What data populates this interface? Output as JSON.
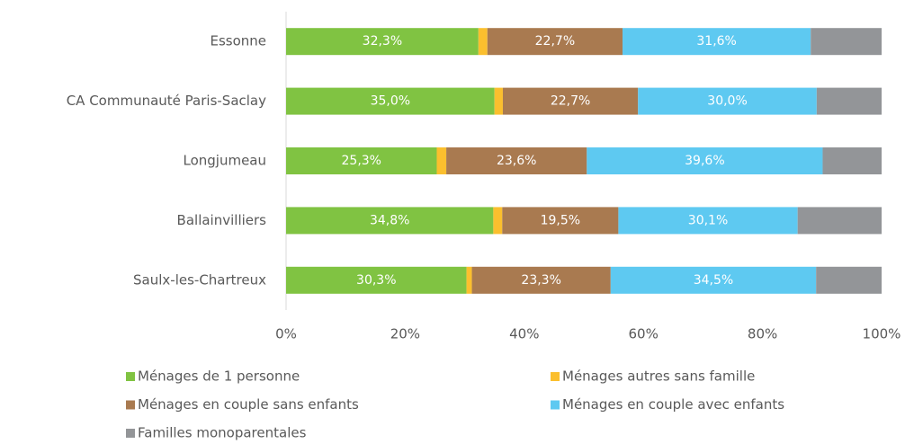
{
  "chart_data": {
    "type": "stacked-bar-horizontal",
    "categories": [
      "Essonne",
      "CA Communauté Paris-Saclay",
      "Longjumeau",
      "Ballainvilliers",
      "Saulx-les-Chartreux"
    ],
    "series": [
      {
        "name": "Ménages de 1 personne",
        "color": "#80c342",
        "values": [
          32.3,
          35.0,
          25.3,
          34.8,
          30.3
        ],
        "value_labels": [
          "32,3%",
          "35,0%",
          "25,3%",
          "34,8%",
          "30,3%"
        ]
      },
      {
        "name": "Ménages autres sans famille",
        "color": "#fbbf2e",
        "values": [
          1.5,
          1.4,
          1.6,
          1.5,
          0.9
        ]
      },
      {
        "name": "Ménages en couple sans enfants",
        "color": "#a97a50",
        "values": [
          22.7,
          22.7,
          23.6,
          19.5,
          23.3
        ],
        "value_labels": [
          "22,7%",
          "22,7%",
          "23,6%",
          "19,5%",
          "23,3%"
        ]
      },
      {
        "name": "Ménages en couple avec enfants",
        "color": "#5ec9f1",
        "values": [
          31.6,
          30.0,
          39.6,
          30.1,
          34.5
        ],
        "value_labels": [
          "31,6%",
          "30,0%",
          "39,6%",
          "30,1%",
          "34,5%"
        ]
      },
      {
        "name": "Familles monoparentales",
        "color": "#939598",
        "values": [
          11.9,
          10.9,
          9.9,
          14.1,
          11.0
        ]
      }
    ],
    "xlim": [
      0,
      100
    ],
    "xticks": [
      {
        "value": 0,
        "label": "0%"
      },
      {
        "value": 20,
        "label": "20%"
      },
      {
        "value": 40,
        "label": "40%"
      },
      {
        "value": 60,
        "label": "60%"
      },
      {
        "value": 80,
        "label": "80%"
      },
      {
        "value": 100,
        "label": "100%"
      }
    ]
  }
}
